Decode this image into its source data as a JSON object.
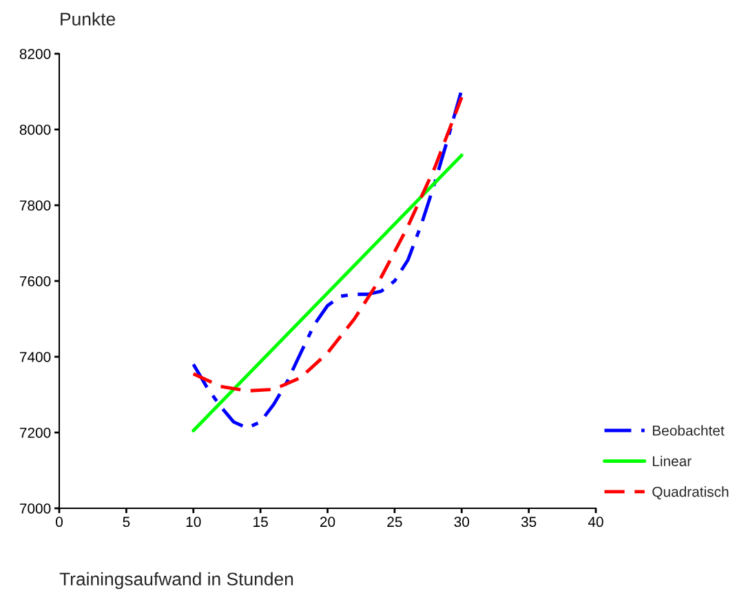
{
  "chart_data": {
    "type": "line",
    "xlabel": "Trainingsaufwand in Stunden",
    "ylabel": "Punkte",
    "xlim": [
      0,
      40
    ],
    "xticks": [
      0,
      5,
      10,
      15,
      20,
      25,
      30,
      35,
      40
    ],
    "ylim": [
      7000,
      8200
    ],
    "yticks": [
      7000,
      7200,
      7400,
      7600,
      7800,
      8000,
      8200
    ],
    "grid": false,
    "legend": "bottom right",
    "marker": "none",
    "series": [
      {
        "name": "Beobachtet",
        "color": "#0000ff",
        "line_style": "dashdot",
        "x": [
          10,
          11,
          12,
          13,
          14,
          15,
          16,
          17,
          18,
          19,
          20,
          21,
          22,
          23,
          24,
          25,
          26,
          27,
          28,
          29,
          30
        ],
        "values": [
          7380,
          7320,
          7270,
          7228,
          7212,
          7228,
          7275,
          7335,
          7410,
          7484,
          7535,
          7560,
          7565,
          7565,
          7573,
          7600,
          7656,
          7750,
          7860,
          7980,
          8105
        ]
      },
      {
        "name": "Linear",
        "color": "#00ff00",
        "line_style": "solid",
        "x": [
          10,
          30
        ],
        "values": [
          7205,
          7932
        ]
      },
      {
        "name": "Quadratisch",
        "color": "#ff0000",
        "line_style": "dashed",
        "x": [
          10,
          12,
          14,
          16,
          18,
          20,
          22,
          24,
          26,
          28,
          30
        ],
        "values": [
          7355,
          7322,
          7310,
          7314,
          7345,
          7410,
          7500,
          7610,
          7745,
          7900,
          8085
        ]
      }
    ]
  }
}
